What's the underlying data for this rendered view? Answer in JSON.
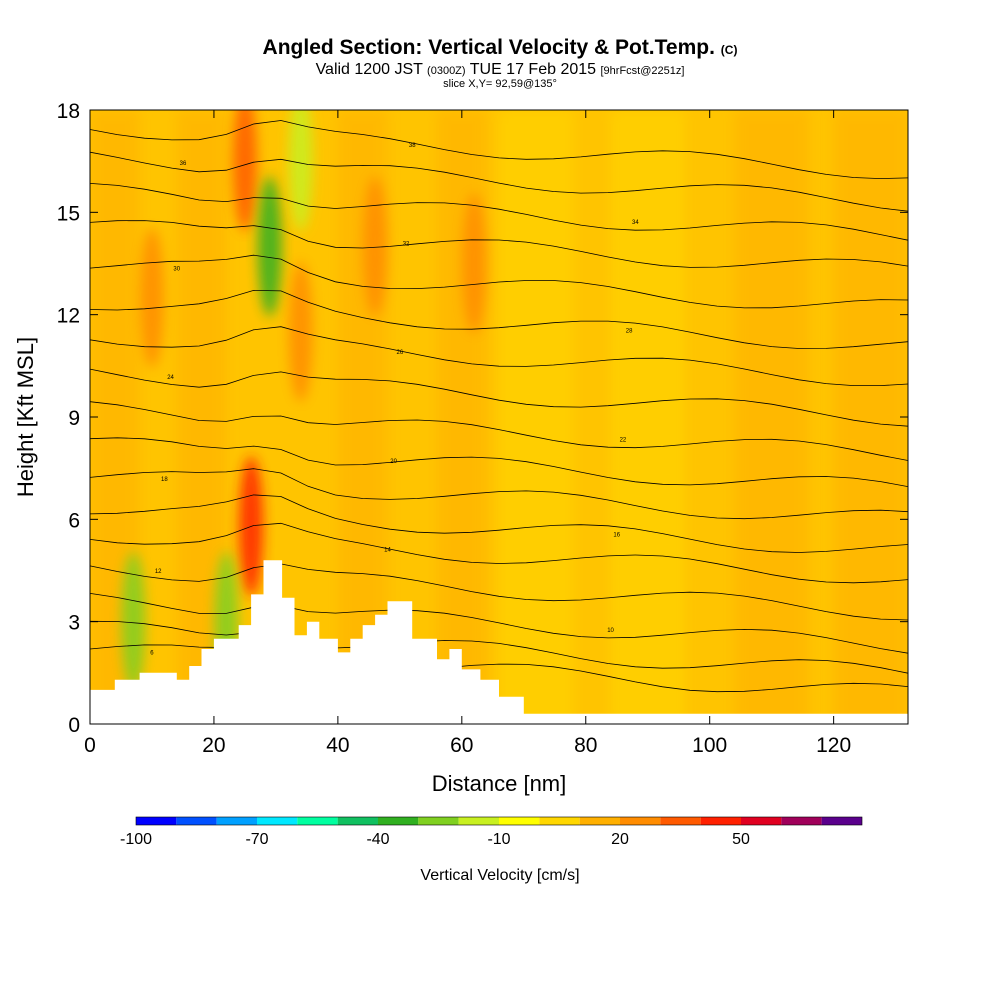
{
  "header": {
    "title_main": "Angled Section: Vertical Velocity & Pot.Temp.",
    "title_tag": "(C)",
    "valid_prefix": "Valid 1200 JST",
    "valid_utc": "(0300Z)",
    "valid_date": "TUE 17 Feb 2015",
    "forecast_tag": "[9hrFcst@2251z]",
    "slice_info": "slice X,Y= 92,59@135°"
  },
  "chart_data": {
    "type": "heatmap",
    "title": "Angled Section: Vertical Velocity & Pot.Temp.",
    "xlabel": "Distance [nm]",
    "ylabel": "Height [Kft MSL]",
    "xlim": [
      0,
      132
    ],
    "ylim": [
      0,
      18
    ],
    "x_ticks": [
      0,
      20,
      40,
      60,
      80,
      100,
      120
    ],
    "y_ticks": [
      0,
      3,
      6,
      9,
      12,
      15,
      18
    ],
    "grid": false,
    "colorbar": {
      "label": "Vertical Velocity [cm/s]",
      "tick_labels": [
        -100,
        -70,
        -40,
        -10,
        20,
        50
      ],
      "levels": [
        -100,
        -90,
        -80,
        -70,
        -60,
        -50,
        -40,
        -30,
        -20,
        -10,
        0,
        10,
        20,
        30,
        40,
        50,
        60,
        70
      ],
      "colors": [
        "#0000ff",
        "#0050ff",
        "#00a0ff",
        "#00e8ff",
        "#00ffa0",
        "#10c060",
        "#30b020",
        "#80d020",
        "#c8f020",
        "#ffff00",
        "#ffd700",
        "#ffb000",
        "#ff8c00",
        "#ff5a00",
        "#ff2000",
        "#e00020",
        "#a0005a",
        "#5a008c"
      ]
    },
    "velocity_features": [
      {
        "x": 10,
        "y": 12.5,
        "value": 25
      },
      {
        "x": 26,
        "y": 5.8,
        "value": 40
      },
      {
        "x": 25,
        "y": 16.5,
        "value": 30
      },
      {
        "x": 29,
        "y": 14,
        "value": -40
      },
      {
        "x": 34,
        "y": 16.5,
        "value": -20
      },
      {
        "x": 34,
        "y": 11.5,
        "value": 25
      },
      {
        "x": 46,
        "y": 14,
        "value": 20
      },
      {
        "x": 62,
        "y": 13.5,
        "value": 20
      },
      {
        "x": 7,
        "y": 3,
        "value": -30
      },
      {
        "x": 22,
        "y": 3,
        "value": -30
      }
    ],
    "terrain": [
      [
        0,
        1
      ],
      [
        4,
        1
      ],
      [
        4,
        1.3
      ],
      [
        8,
        1.3
      ],
      [
        8,
        1.5
      ],
      [
        14,
        1.5
      ],
      [
        14,
        1.3
      ],
      [
        16,
        1.3
      ],
      [
        16,
        1.7
      ],
      [
        18,
        1.7
      ],
      [
        18,
        2.2
      ],
      [
        20,
        2.2
      ],
      [
        20,
        2.5
      ],
      [
        24,
        2.5
      ],
      [
        24,
        2.9
      ],
      [
        26,
        2.9
      ],
      [
        26,
        3.8
      ],
      [
        28,
        3.8
      ],
      [
        28,
        4.8
      ],
      [
        31,
        4.8
      ],
      [
        31,
        3.7
      ],
      [
        33,
        3.7
      ],
      [
        33,
        2.6
      ],
      [
        35,
        2.6
      ],
      [
        35,
        3
      ],
      [
        37,
        3
      ],
      [
        37,
        2.5
      ],
      [
        40,
        2.5
      ],
      [
        40,
        2.1
      ],
      [
        42,
        2.1
      ],
      [
        42,
        2.5
      ],
      [
        44,
        2.5
      ],
      [
        44,
        2.9
      ],
      [
        46,
        2.9
      ],
      [
        46,
        3.2
      ],
      [
        48,
        3.2
      ],
      [
        48,
        3.6
      ],
      [
        52,
        3.6
      ],
      [
        52,
        2.5
      ],
      [
        56,
        2.5
      ],
      [
        56,
        1.9
      ],
      [
        58,
        1.9
      ],
      [
        58,
        2.2
      ],
      [
        60,
        2.2
      ],
      [
        60,
        1.6
      ],
      [
        63,
        1.6
      ],
      [
        63,
        1.3
      ],
      [
        66,
        1.3
      ],
      [
        66,
        0.8
      ],
      [
        70,
        0.8
      ],
      [
        70,
        0.3
      ],
      [
        132,
        0.3
      ]
    ],
    "theta_contours": [
      {
        "level": 6,
        "y_left": 2.2,
        "label": "6"
      },
      {
        "level": 8,
        "y_left": 2.8,
        "label": "8"
      },
      {
        "level": 10,
        "y_left": 3.6,
        "label": "10"
      },
      {
        "level": 12,
        "y_left": 4.6,
        "label": "12"
      },
      {
        "level": 14,
        "y_left": 5.6,
        "label": "14"
      },
      {
        "level": 16,
        "y_left": 6.4,
        "label": "16"
      },
      {
        "level": 18,
        "y_left": 7.3,
        "label": "18"
      },
      {
        "level": 20,
        "y_left": 8.2,
        "label": "20"
      },
      {
        "level": 22,
        "y_left": 9.2,
        "label": "22"
      },
      {
        "level": 24,
        "y_left": 10.3,
        "label": "24"
      },
      {
        "level": 26,
        "y_left": 11.4,
        "label": "26"
      },
      {
        "level": 28,
        "y_left": 12.4,
        "label": "28"
      },
      {
        "level": 30,
        "y_left": 13.5,
        "label": "30"
      },
      {
        "level": 32,
        "y_left": 14.6,
        "label": "32"
      },
      {
        "level": 34,
        "y_left": 15.6,
        "label": "34"
      },
      {
        "level": 36,
        "y_left": 16.6,
        "label": "36"
      },
      {
        "level": 38,
        "y_left": 17.5,
        "label": "38"
      }
    ]
  }
}
